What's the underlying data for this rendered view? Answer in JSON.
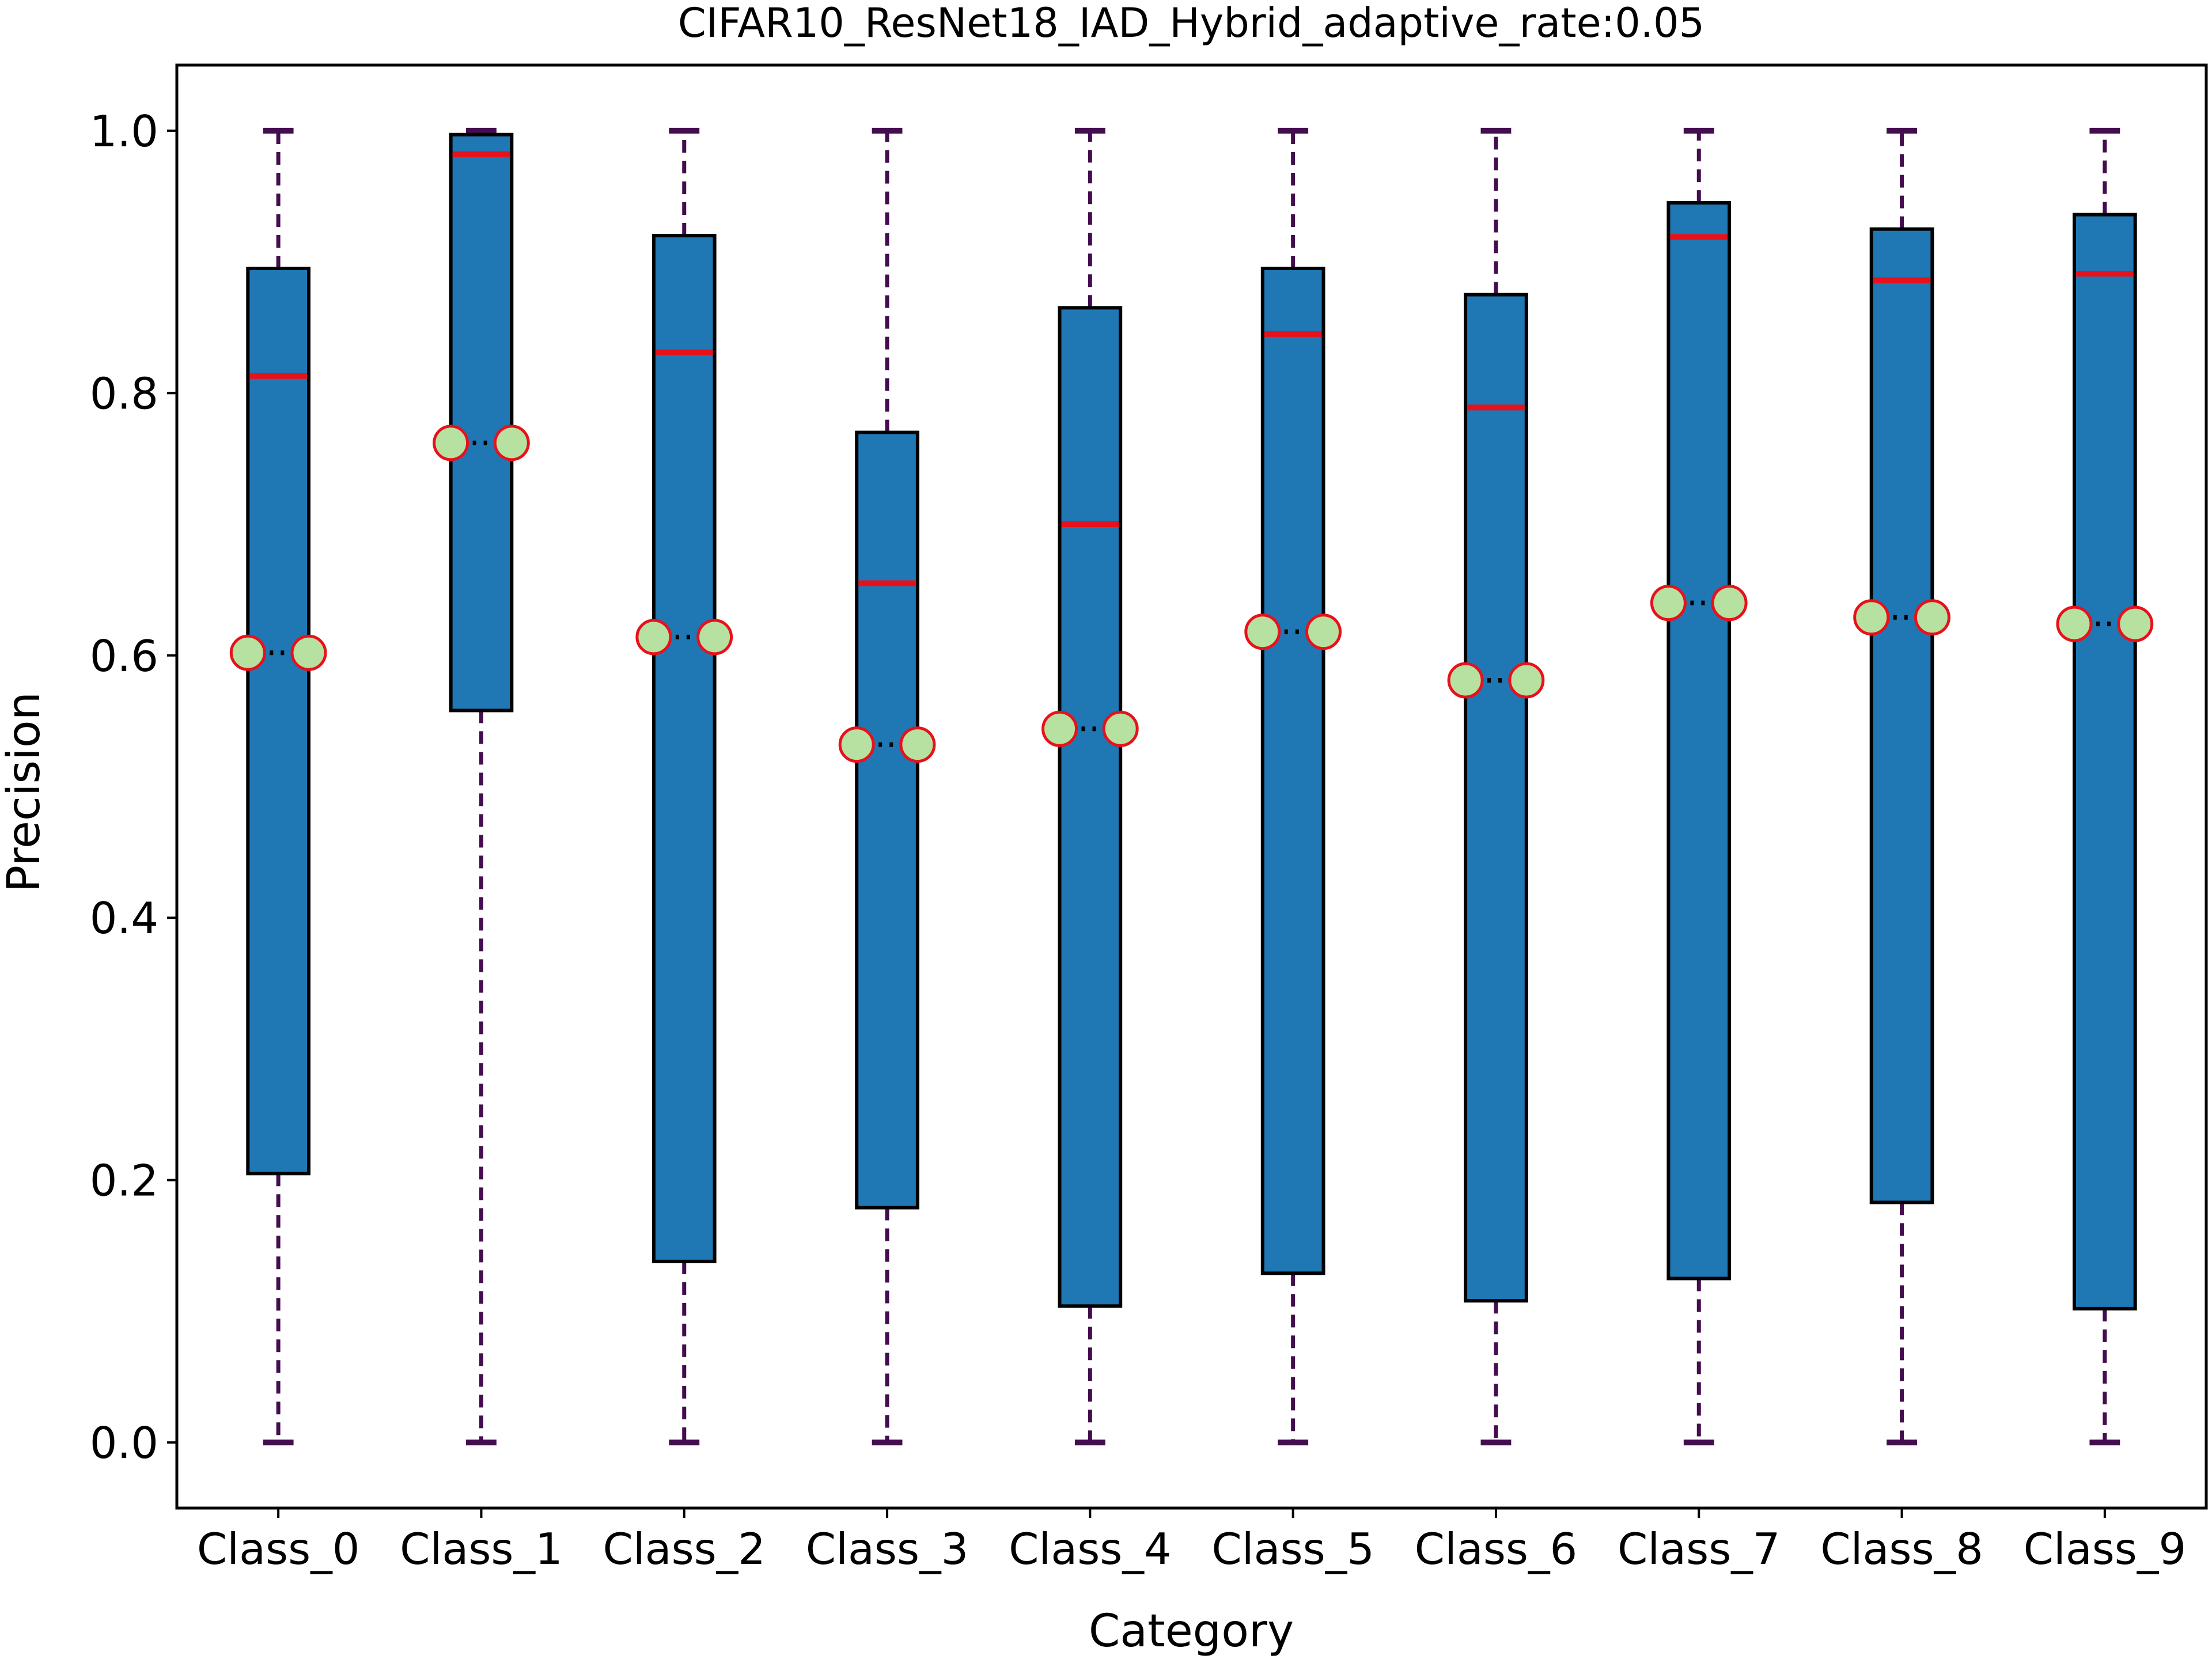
{
  "chart_data": {
    "type": "boxplot",
    "title": "CIFAR10_ResNet18_IAD_Hybrid_adaptive_rate:0.05",
    "xlabel": "Category",
    "ylabel": "Precision",
    "ylim": [
      -0.05,
      1.05
    ],
    "yticks": [
      0.0,
      0.2,
      0.4,
      0.6,
      0.8,
      1.0
    ],
    "ytick_labels": [
      "0.0",
      "0.2",
      "0.4",
      "0.6",
      "0.8",
      "1.0"
    ],
    "grid": false,
    "legend": "none",
    "categories": [
      "Class_0",
      "Class_1",
      "Class_2",
      "Class_3",
      "Class_4",
      "Class_5",
      "Class_6",
      "Class_7",
      "Class_8",
      "Class_9"
    ],
    "boxes": [
      {
        "whisker_low": 0.0,
        "q1": 0.205,
        "median": 0.813,
        "q3": 0.895,
        "whisker_high": 1.0,
        "mean": 0.602
      },
      {
        "whisker_low": 0.0,
        "q1": 0.558,
        "median": 0.982,
        "q3": 0.997,
        "whisker_high": 1.0,
        "mean": 0.762
      },
      {
        "whisker_low": 0.0,
        "q1": 0.138,
        "median": 0.831,
        "q3": 0.92,
        "whisker_high": 1.0,
        "mean": 0.614
      },
      {
        "whisker_low": 0.0,
        "q1": 0.179,
        "median": 0.655,
        "q3": 0.77,
        "whisker_high": 1.0,
        "mean": 0.532
      },
      {
        "whisker_low": 0.0,
        "q1": 0.104,
        "median": 0.7,
        "q3": 0.865,
        "whisker_high": 1.0,
        "mean": 0.544
      },
      {
        "whisker_low": 0.0,
        "q1": 0.129,
        "median": 0.845,
        "q3": 0.895,
        "whisker_high": 1.0,
        "mean": 0.618
      },
      {
        "whisker_low": 0.0,
        "q1": 0.108,
        "median": 0.789,
        "q3": 0.875,
        "whisker_high": 1.0,
        "mean": 0.581
      },
      {
        "whisker_low": 0.0,
        "q1": 0.125,
        "median": 0.919,
        "q3": 0.945,
        "whisker_high": 1.0,
        "mean": 0.64
      },
      {
        "whisker_low": 0.0,
        "q1": 0.183,
        "median": 0.886,
        "q3": 0.925,
        "whisker_high": 1.0,
        "mean": 0.629
      },
      {
        "whisker_low": 0.0,
        "q1": 0.102,
        "median": 0.891,
        "q3": 0.936,
        "whisker_high": 1.0,
        "mean": 0.624
      }
    ],
    "colors": {
      "box_fill": "#1f77b4",
      "box_edge": "#000000",
      "median": "#e8111b",
      "whisker": "#440d4f",
      "mean_marker_fill": "#b7e1a1",
      "mean_marker_edge": "#e8111b",
      "mean_line": "#000000"
    }
  }
}
